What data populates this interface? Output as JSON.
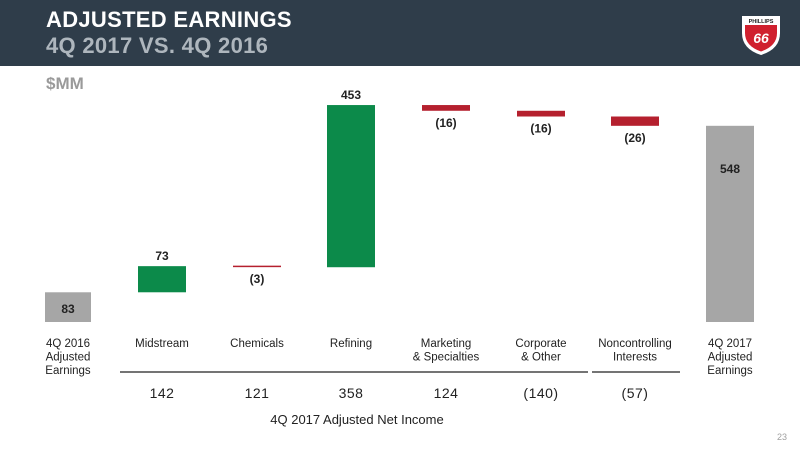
{
  "header": {
    "title_line1": "ADJUSTED EARNINGS",
    "title_line2": "4Q 2017 VS. 4Q 2016",
    "logo_text": "PHILLIPS",
    "logo_number": "66"
  },
  "units_label": "$MM",
  "page_number": "23",
  "colors": {
    "header_bg": "#2f3d4a",
    "increase": "#0c8a4a",
    "decrease": "#b5202e",
    "total": "#a6a6a6"
  },
  "chart_data": {
    "type": "waterfall",
    "categories": [
      {
        "key": "start",
        "lines": [
          "4Q 2016",
          "Adjusted",
          "Earnings"
        ]
      },
      {
        "key": "midstream",
        "lines": [
          "Midstream"
        ]
      },
      {
        "key": "chemicals",
        "lines": [
          "Chemicals"
        ]
      },
      {
        "key": "refining",
        "lines": [
          "Refining"
        ]
      },
      {
        "key": "marketing",
        "lines": [
          "Marketing",
          "& Specialties"
        ]
      },
      {
        "key": "corporate",
        "lines": [
          "Corporate",
          "& Other"
        ]
      },
      {
        "key": "noncontrolling",
        "lines": [
          "Noncontrolling",
          "Interests"
        ]
      },
      {
        "key": "end",
        "lines": [
          "4Q 2017",
          "Adjusted",
          "Earnings"
        ]
      }
    ],
    "steps": [
      {
        "kind": "total",
        "value": 83,
        "label": "83"
      },
      {
        "kind": "delta",
        "value": 73,
        "label": "73"
      },
      {
        "kind": "delta",
        "value": -3,
        "label": "(3)"
      },
      {
        "kind": "delta",
        "value": 453,
        "label": "453"
      },
      {
        "kind": "delta",
        "value": -16,
        "label": "(16)"
      },
      {
        "kind": "delta",
        "value": -16,
        "label": "(16)"
      },
      {
        "kind": "delta",
        "value": -26,
        "label": "(26)"
      },
      {
        "kind": "total",
        "value": 548,
        "label": "548"
      }
    ],
    "net_income": {
      "title": "4Q 2017 Adjusted Net Income",
      "values": [
        "142",
        "121",
        "358",
        "124",
        "(140)",
        "(57)"
      ]
    }
  }
}
